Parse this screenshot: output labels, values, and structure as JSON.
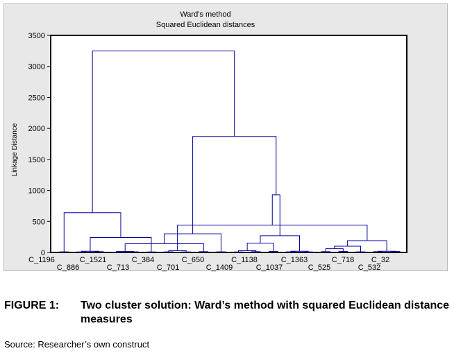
{
  "chart_data": {
    "type": "dendrogram",
    "title": "Ward’s method",
    "subtitle": "Squared Euclidean distances",
    "ylabel": "Linkage Distance",
    "xlabel": "",
    "ylim": [
      0,
      3500
    ],
    "yticks": [
      0,
      500,
      1000,
      1500,
      2000,
      2500,
      3000,
      3500
    ],
    "grid": false,
    "leaf_labels_row1": [
      "C_1196",
      "C_1521",
      "C_384",
      "C_650",
      "C_1138",
      "C_1363",
      "C_718",
      "C_32"
    ],
    "leaf_labels_row2": [
      "C_886",
      "C_713",
      "C_701",
      "C_1409",
      "C_1037",
      "C_525",
      "C_532"
    ],
    "n_leaves": 40,
    "merges": [
      {
        "left": 0,
        "right": 1,
        "height": 10
      },
      {
        "left": 2,
        "right": 3,
        "height": 8
      },
      {
        "left": 4,
        "right": 5,
        "height": 12
      },
      {
        "left": 6,
        "right": 7,
        "height": 6
      },
      {
        "left": 8,
        "right": 9,
        "height": 10
      },
      {
        "left": 10,
        "right": 11,
        "height": 8
      },
      {
        "left": 12,
        "right": 13,
        "height": 10
      },
      {
        "left": 14,
        "right": 15,
        "height": 8
      },
      {
        "left": 16,
        "right": 17,
        "height": 12
      },
      {
        "left": 18,
        "right": 19,
        "height": 10
      },
      {
        "left": 20,
        "right": 21,
        "height": 8
      },
      {
        "left": 22,
        "right": 23,
        "height": 12
      },
      {
        "left": 24,
        "right": 25,
        "height": 15
      },
      {
        "left": 26,
        "right": 27,
        "height": 10
      },
      {
        "left": 28,
        "right": 29,
        "height": 8
      },
      {
        "left": 30,
        "right": 31,
        "height": 12
      },
      {
        "left": 32,
        "right": 33,
        "height": 15
      },
      {
        "left": 34,
        "right": 35,
        "height": 10
      },
      {
        "left": 36,
        "right": 37,
        "height": 12
      },
      {
        "left": 38,
        "right": 39,
        "height": 15
      },
      {
        "left": 41,
        "right": 42,
        "height": 20
      },
      {
        "left": 43,
        "right": 44,
        "height": 15
      },
      {
        "left": 46,
        "right": 47,
        "height": 30
      },
      {
        "left": 53,
        "right": 54,
        "height": 20
      },
      {
        "left": 58,
        "right": 59,
        "height": 20
      },
      {
        "left": 60,
        "right": 45,
        "height": 240
      },
      {
        "left": 40,
        "right": 65,
        "height": 640
      },
      {
        "left": 61,
        "right": 48,
        "height": 140
      },
      {
        "left": 67,
        "right": 49,
        "height": 300
      },
      {
        "left": 50,
        "right": 51,
        "height": 30
      },
      {
        "left": 69,
        "right": 52,
        "height": 150
      },
      {
        "left": 70,
        "right": 63,
        "height": 270
      },
      {
        "left": 55,
        "right": 56,
        "height": 60
      },
      {
        "left": 72,
        "right": 57,
        "height": 100
      },
      {
        "left": 73,
        "right": 64,
        "height": 190
      },
      {
        "left": 62,
        "right": 74,
        "height": 440
      },
      {
        "left": 71,
        "right": 75,
        "height": 930
      },
      {
        "left": 68,
        "right": 76,
        "height": 1870
      },
      {
        "left": 66,
        "right": 77,
        "height": 3250
      }
    ]
  },
  "caption": {
    "figure_number": "FIGURE 1:",
    "text": "Two cluster solution: Ward’s method with squared Euclidean distance measures"
  },
  "source": "Source: Researcher’s own construct",
  "colors": {
    "line": "#0000a0",
    "plot_bg": "#ffffff",
    "chart_bg": "#e8e8e8",
    "axis": "#000000"
  }
}
